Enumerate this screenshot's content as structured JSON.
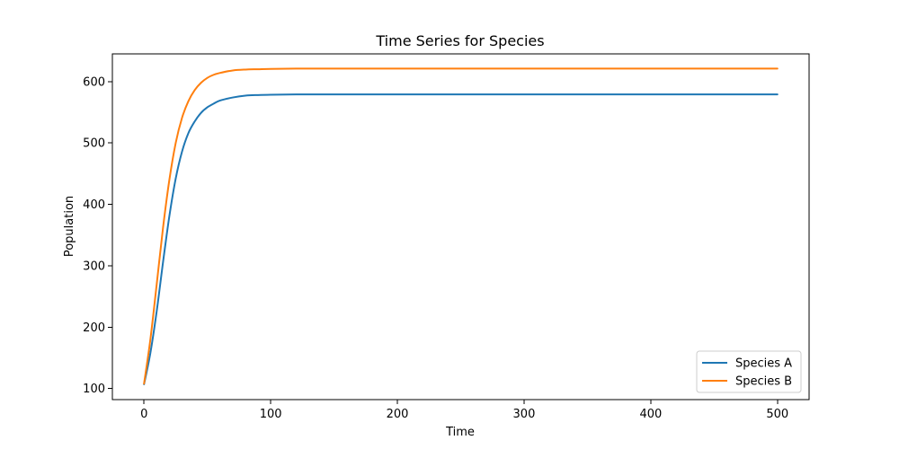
{
  "chart_data": {
    "type": "line",
    "title": "Time Series for Species",
    "xlabel": "Time",
    "ylabel": "Population",
    "xlim": [
      -25,
      525
    ],
    "ylim": [
      82,
      645
    ],
    "xticks": [
      0,
      100,
      200,
      300,
      400,
      500
    ],
    "yticks": [
      100,
      200,
      300,
      400,
      500,
      600
    ],
    "grid": false,
    "legend_position": "bottom-right",
    "x": [
      0,
      5,
      10,
      15,
      20,
      25,
      30,
      35,
      40,
      45,
      50,
      55,
      60,
      70,
      80,
      90,
      100,
      120,
      150,
      200,
      300,
      400,
      500
    ],
    "series": [
      {
        "name": "Species A",
        "color": "#1f77b4",
        "values": [
          107,
          158,
          226,
          306,
          381,
          442,
          486,
          516,
          535,
          549,
          558,
          564,
          569,
          574,
          577,
          578,
          578.5,
          579,
          579,
          579,
          579,
          579,
          579
        ]
      },
      {
        "name": "Species B",
        "color": "#ff7f0e",
        "values": [
          108,
          180,
          270,
          362,
          440,
          500,
          541,
          568,
          586,
          598,
          606,
          611,
          614,
          618,
          619.5,
          620,
          620.5,
          621,
          621,
          621,
          621,
          621,
          621
        ]
      }
    ]
  }
}
